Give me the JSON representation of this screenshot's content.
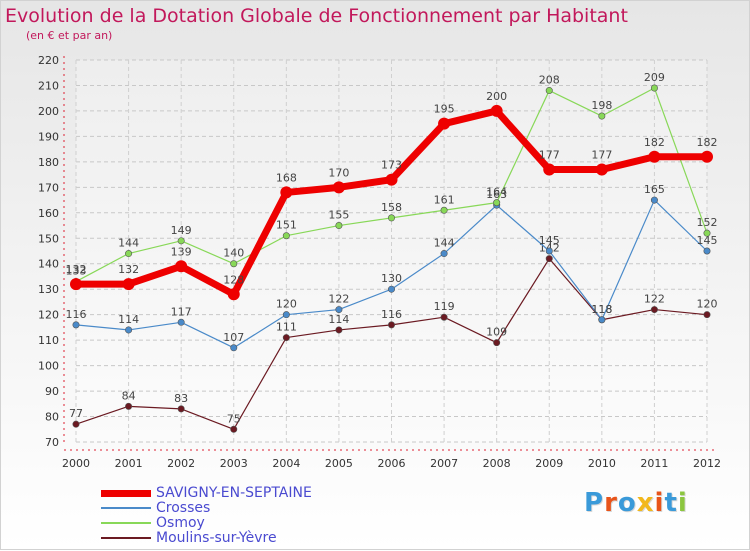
{
  "chart_data": {
    "type": "line",
    "title": "Evolution de la Dotation Globale de Fonctionnement par Habitant",
    "subtitle": "(en € et par an)",
    "xlabel": "",
    "ylabel": "",
    "x": [
      "2000",
      "2001",
      "2002",
      "2003",
      "2004",
      "2005",
      "2006",
      "2007",
      "2008",
      "2009",
      "2010",
      "2011",
      "2012"
    ],
    "ylim": [
      70,
      220
    ],
    "yticks": [
      70,
      80,
      90,
      100,
      110,
      120,
      130,
      140,
      150,
      160,
      170,
      180,
      190,
      200,
      210,
      220
    ],
    "grid": true,
    "legend_position": "bottom-left",
    "series": [
      {
        "name": "SAVIGNY-EN-SEPTAINE",
        "color": "#ee0000",
        "values": [
          132,
          132,
          139,
          128,
          168,
          170,
          173,
          195,
          200,
          177,
          177,
          182,
          182
        ]
      },
      {
        "name": "Crosses",
        "color": "#4a8ac9",
        "values": [
          116,
          114,
          117,
          107,
          120,
          122,
          130,
          144,
          163,
          145,
          118,
          165,
          145
        ]
      },
      {
        "name": "Osmoy",
        "color": "#88d858",
        "values": [
          133,
          144,
          149,
          140,
          151,
          155,
          158,
          161,
          164,
          208,
          198,
          209,
          152
        ]
      },
      {
        "name": "Moulins-sur-Yèvre",
        "color": "#6b1a22",
        "values": [
          77,
          84,
          83,
          75,
          111,
          114,
          116,
          119,
          109,
          142,
          118,
          122,
          120
        ]
      }
    ]
  },
  "branding": {
    "logo_text": "Proxiti",
    "logo_colors": [
      "#3a9ad9",
      "#e8541a",
      "#3a9ad9",
      "#f2b81c",
      "#e8541a",
      "#3a9ad9",
      "#8cc63f"
    ]
  }
}
